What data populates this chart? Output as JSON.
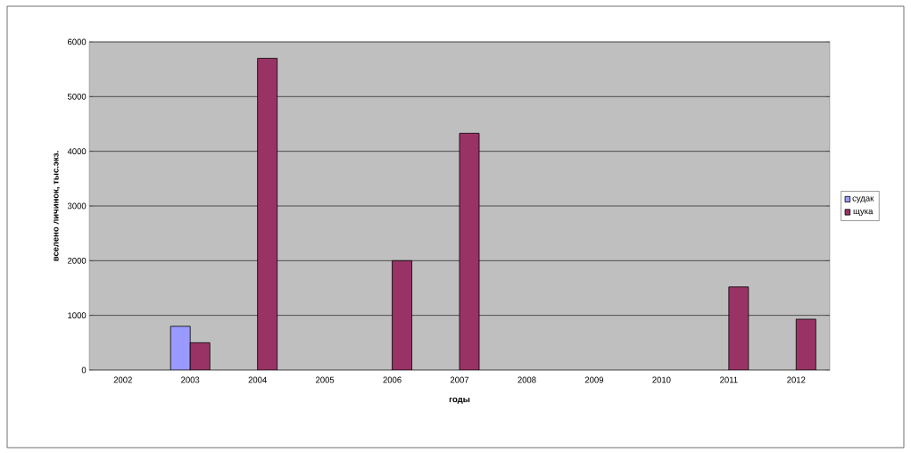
{
  "chart_data": {
    "type": "bar",
    "xlabel": "годы",
    "ylabel": "вселено личинок, тыс.экз.",
    "categories": [
      "2002",
      "2003",
      "2004",
      "2005",
      "2006",
      "2007",
      "2008",
      "2009",
      "2010",
      "2011",
      "2012"
    ],
    "series": [
      {
        "name": "судак",
        "color": "#9999ff",
        "values": [
          null,
          800,
          null,
          null,
          null,
          null,
          null,
          null,
          null,
          null,
          null
        ]
      },
      {
        "name": "щука",
        "color": "#993366",
        "values": [
          null,
          500,
          5700,
          null,
          2000,
          4330,
          null,
          null,
          null,
          1520,
          930
        ]
      }
    ],
    "ylim": [
      0,
      6000
    ],
    "yticks": [
      0,
      1000,
      2000,
      3000,
      4000,
      5000,
      6000
    ],
    "grid": "y",
    "legend": "right"
  }
}
